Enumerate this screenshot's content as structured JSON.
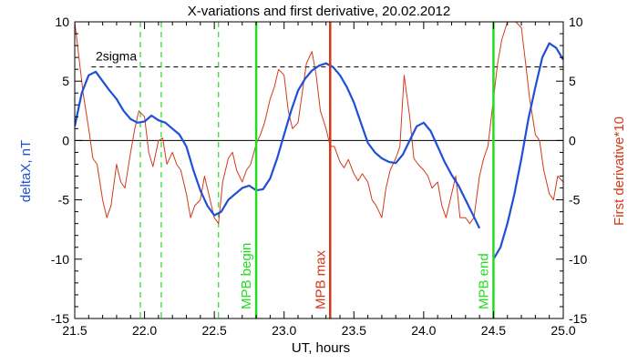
{
  "chart_data": {
    "type": "line",
    "title": "X-variations and first derivative, 20.02.2012",
    "xlabel": "UT, hours",
    "ylabel_left": "deltaX, nT",
    "ylabel_right": "First derivative*10",
    "xlim": [
      21.5,
      25.0
    ],
    "ylim": [
      -15,
      10
    ],
    "x_ticks": [
      "21.5",
      "22.0",
      "22.5",
      "23.0",
      "23.5",
      "24.0",
      "24.5",
      "25.0"
    ],
    "y_ticks_left": [
      "-15",
      "-10",
      "-5",
      "0",
      "5",
      "10"
    ],
    "y_ticks_right": [
      "-15",
      "-10",
      "-5",
      "0",
      "5",
      "10"
    ],
    "grid": false,
    "colors": {
      "deltaX": "#1f4fd8",
      "derivative": "#d23a1a",
      "mpb_edge": "#22dd22",
      "mpb_max": "#d23a1a",
      "dashed_marker": "#22dd22",
      "axis": "#000000"
    },
    "threshold": {
      "label": "2sigma",
      "y": 6.2
    },
    "zero_line": 0,
    "dashed_markers": [
      21.97,
      22.12,
      22.53
    ],
    "vertical_markers": [
      {
        "x": 22.8,
        "label": "MPB begin",
        "color": "#22dd22"
      },
      {
        "x": 23.33,
        "label": "MPB max",
        "color": "#d23a1a"
      },
      {
        "x": 24.5,
        "label": "MPB end",
        "color": "#22dd22"
      }
    ],
    "series": [
      {
        "name": "deltaX",
        "axis": "left",
        "segments": [
          {
            "x": [
              21.5,
              21.55,
              21.6,
              21.65,
              21.7,
              21.75,
              21.8,
              21.85,
              21.9,
              21.95,
              22.0,
              22.05,
              22.1,
              22.15,
              22.2,
              22.25,
              22.3,
              22.35,
              22.4,
              22.45,
              22.5,
              22.55,
              22.6,
              22.65,
              22.7,
              22.75,
              22.8,
              22.85,
              22.9,
              22.95,
              23.0,
              23.05,
              23.1,
              23.15,
              23.2,
              23.25,
              23.3,
              23.35,
              23.4,
              23.45,
              23.5,
              23.55,
              23.6,
              23.65,
              23.7,
              23.75,
              23.8,
              23.85,
              23.9,
              23.95,
              24.0,
              24.05,
              24.1,
              24.15,
              24.2,
              24.25,
              24.3,
              24.35,
              24.4
            ],
            "y": [
              1.2,
              4.0,
              5.5,
              5.8,
              5.0,
              4.2,
              3.5,
              2.5,
              1.8,
              1.5,
              1.6,
              2.1,
              1.7,
              1.5,
              1.0,
              0.5,
              -0.5,
              -2.5,
              -4.2,
              -5.5,
              -6.3,
              -6.0,
              -5.0,
              -4.5,
              -4.0,
              -3.8,
              -4.2,
              -4.1,
              -3.2,
              -1.5,
              0.5,
              2.5,
              4.2,
              5.2,
              5.9,
              6.3,
              6.5,
              6.2,
              5.5,
              4.5,
              3.2,
              1.5,
              -0.2,
              -1.0,
              -1.5,
              -1.8,
              -1.9,
              -1.2,
              0.0,
              1.2,
              1.5,
              0.8,
              -0.5,
              -1.8,
              -2.9,
              -3.8,
              -5.0,
              -6.2,
              -7.4
            ]
          },
          {
            "x": [
              24.5,
              24.55,
              24.6,
              24.65,
              24.7,
              24.75,
              24.8,
              24.85,
              24.9,
              24.95,
              25.0
            ],
            "y": [
              -10.0,
              -9.0,
              -7.0,
              -4.5,
              -1.5,
              1.8,
              4.5,
              7.0,
              8.2,
              7.8,
              6.8
            ]
          }
        ]
      },
      {
        "name": "First derivative*10",
        "axis": "right",
        "segments": [
          {
            "x": [
              21.5,
              21.53,
              21.56,
              21.6,
              21.63,
              21.66,
              21.7,
              21.73,
              21.76,
              21.8,
              21.83,
              21.86,
              21.9,
              21.93,
              21.96,
              22.0,
              22.03,
              22.06,
              22.1,
              22.13,
              22.16,
              22.2,
              22.23,
              22.26,
              22.3,
              22.33,
              22.36,
              22.4,
              22.43,
              22.46,
              22.5,
              22.53,
              22.56,
              22.6,
              22.63,
              22.66,
              22.7,
              22.73,
              22.76,
              22.8,
              22.83,
              22.86,
              22.9,
              22.93,
              22.96,
              23.0,
              23.03,
              23.06,
              23.1,
              23.13,
              23.16,
              23.2,
              23.23,
              23.26,
              23.3,
              23.33,
              23.36,
              23.4,
              23.43,
              23.46,
              23.5,
              23.53,
              23.56,
              23.6,
              23.63,
              23.66,
              23.7,
              23.73,
              23.76,
              23.8,
              23.83,
              23.86,
              23.9,
              23.93,
              23.96,
              24.0,
              24.03,
              24.06,
              24.1,
              24.13,
              24.16,
              24.2,
              24.23,
              24.26,
              24.3,
              24.33,
              24.36,
              24.4,
              24.43,
              24.46,
              24.5,
              24.53,
              24.56,
              24.6,
              24.63,
              24.66,
              24.7,
              24.73,
              24.76,
              24.8,
              24.83,
              24.86,
              24.9,
              24.93,
              24.96,
              25.0
            ],
            "y": [
              10.0,
              7.0,
              4.0,
              1.0,
              -1.5,
              -2.0,
              -5.0,
              -6.5,
              -5.5,
              -2.0,
              -3.5,
              -4.0,
              -1.0,
              1.0,
              2.5,
              2.0,
              -1.0,
              -2.2,
              0.0,
              0.2,
              -2.0,
              -1.0,
              -2.0,
              -2.5,
              -4.5,
              -6.5,
              -5.5,
              -5.0,
              -3.0,
              -4.5,
              -6.5,
              -7.0,
              -3.5,
              -1.5,
              -1.0,
              -2.5,
              -3.5,
              -2.5,
              -2.0,
              -0.3,
              0.5,
              1.5,
              3.5,
              4.5,
              6.0,
              5.5,
              2.5,
              1.0,
              1.5,
              4.0,
              6.5,
              7.5,
              5.5,
              2.5,
              1.0,
              -0.5,
              -0.5,
              -1.8,
              -2.3,
              -1.6,
              -2.8,
              -3.4,
              -2.8,
              -3.5,
              -5.0,
              -5.5,
              -6.5,
              -4.0,
              -2.5,
              -1.5,
              -0.5,
              5.5,
              2.0,
              -1.5,
              -2.0,
              -2.5,
              -3.0,
              -4.0,
              -3.5,
              -5.5,
              -6.5,
              -4.5,
              -3.0,
              -6.5,
              -6.5,
              -7.0,
              -6.5,
              -3.0,
              -1.5,
              -0.5,
              3.5,
              6.5,
              8.5,
              10.0,
              10.0,
              10.0,
              9.5,
              6.5,
              3.5,
              0.5,
              0.0,
              -2.5,
              -4.5,
              -5.0,
              -3.0,
              -3.5
            ]
          }
        ]
      }
    ]
  }
}
